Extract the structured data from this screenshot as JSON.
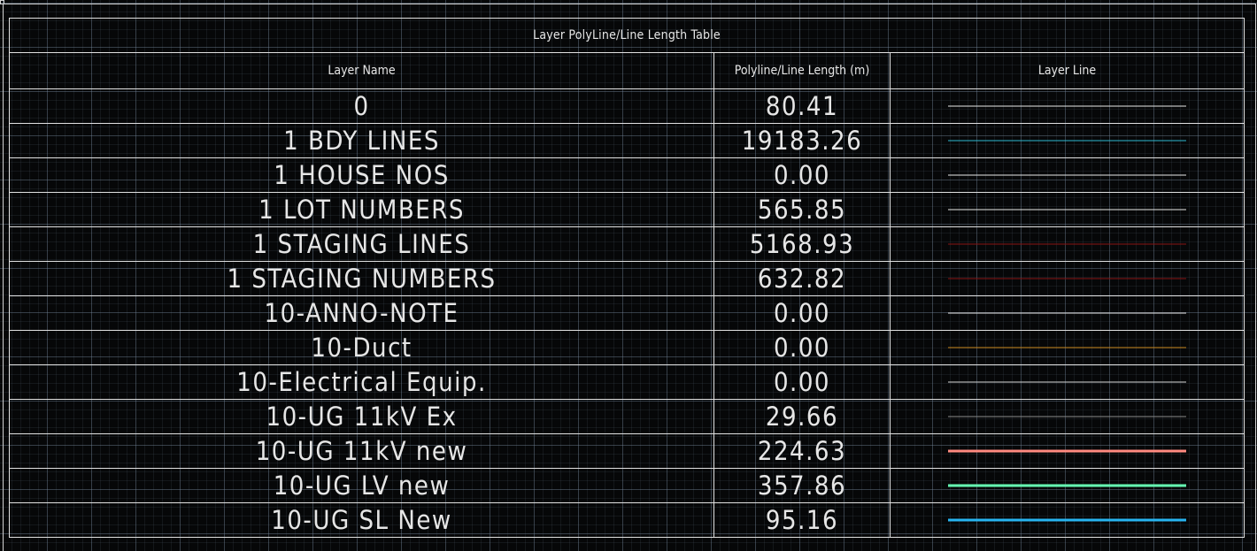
{
  "table": {
    "title": "Layer PolyLine/Line Length Table",
    "headers": {
      "layer_name": "Layer Name",
      "length": "Polyline/Line Length (m)",
      "layer_line": "Layer Line"
    },
    "rows": [
      {
        "name": "0",
        "length": "80.41",
        "line_color": "#e8e8e8",
        "line_weight": "thin"
      },
      {
        "name": "1 BDY LINES",
        "length": "19183.26",
        "line_color": "#2fb9cf",
        "line_weight": "thin"
      },
      {
        "name": "1 HOUSE NOS",
        "length": "0.00",
        "line_color": "#e8e8e8",
        "line_weight": "thin"
      },
      {
        "name": "1 LOT NUMBERS",
        "length": "565.85",
        "line_color": "#e8e8e8",
        "line_weight": "thin"
      },
      {
        "name": "1 STAGING LINES",
        "length": "5168.93",
        "line_color": "#8a1414",
        "line_weight": "thin"
      },
      {
        "name": "1 STAGING NUMBERS",
        "length": "632.82",
        "line_color": "#8a1414",
        "line_weight": "thin"
      },
      {
        "name": "10-ANNO-NOTE",
        "length": "0.00",
        "line_color": "#e8e8e8",
        "line_weight": "thin"
      },
      {
        "name": "10-Duct",
        "length": "0.00",
        "line_color": "#c8861c",
        "line_weight": "thin"
      },
      {
        "name": "10-Electrical Equip.",
        "length": "0.00",
        "line_color": "#d8d8d8",
        "line_weight": "thin"
      },
      {
        "name": "10-UG 11kV Ex",
        "length": "29.66",
        "line_color": "#8c8c8c",
        "line_weight": "thin"
      },
      {
        "name": "10-UG 11kV new",
        "length": "224.63",
        "line_color": "#ff8a80",
        "line_weight": "thick"
      },
      {
        "name": "10-UG LV new",
        "length": "357.86",
        "line_color": "#66ffb3",
        "line_weight": "thick"
      },
      {
        "name": "10-UG SL New",
        "length": "95.16",
        "line_color": "#27b4f0",
        "line_weight": "thick"
      }
    ]
  }
}
